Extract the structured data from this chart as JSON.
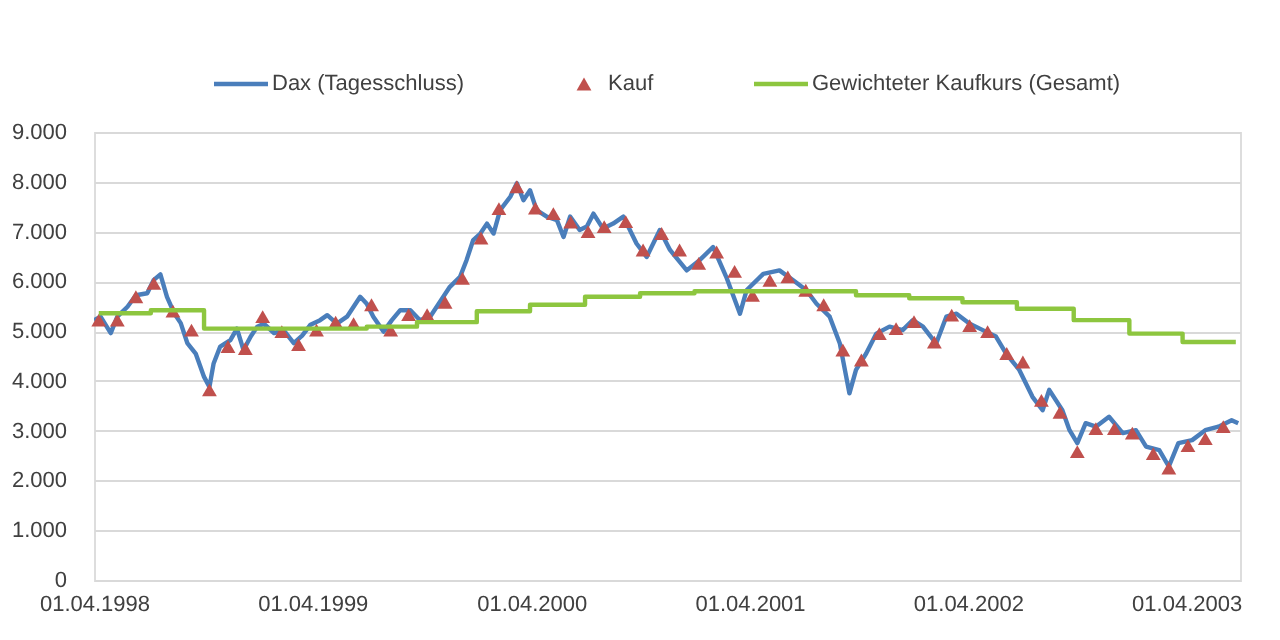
{
  "chart_data": {
    "type": "line",
    "legend": "top",
    "grid": "y",
    "xlim": [
      "1998-04-01",
      "2003-06-30"
    ],
    "xticks": [
      {
        "value": "1998-04-01",
        "label": "01.04.1998"
      },
      {
        "value": "1999-04-01",
        "label": "01.04.1999"
      },
      {
        "value": "2000-04-01",
        "label": "01.04.2000"
      },
      {
        "value": "2001-04-01",
        "label": "01.04.2001"
      },
      {
        "value": "2002-04-01",
        "label": "01.04.2002"
      },
      {
        "value": "2003-04-01",
        "label": "01.04.2003"
      }
    ],
    "ylim": [
      0,
      9000
    ],
    "yticks": [
      0,
      {
        "value": 1000,
        "label": "1.000"
      },
      {
        "value": 2000,
        "label": "2.000"
      },
      {
        "value": 3000,
        "label": "3.000"
      },
      {
        "value": 4000,
        "label": "4.000"
      },
      {
        "value": 5000,
        "label": "5.000"
      },
      {
        "value": 6000,
        "label": "6.000"
      },
      {
        "value": 7000,
        "label": "7.000"
      },
      {
        "value": 8000,
        "label": "8.000"
      },
      {
        "value": 9000,
        "label": "9.000"
      }
    ],
    "series": [
      {
        "name": "Dax (Tagesschluss)",
        "type": "line",
        "color": "#4a7ebb",
        "marker": "none",
        "line_style": "solid",
        "x": [
          "1998-04-01",
          "1998-04-12",
          "1998-04-29",
          "1998-05-10",
          "1998-05-27",
          "1998-06-10",
          "1998-06-29",
          "1998-07-10",
          "1998-07-21",
          "1998-08-01",
          "1998-08-13",
          "1998-08-24",
          "1998-09-04",
          "1998-09-18",
          "1998-10-02",
          "1998-10-11",
          "1998-10-18",
          "1998-10-29",
          "1998-11-15",
          "1998-11-26",
          "1998-12-07",
          "1998-12-19",
          "1998-12-30",
          "1999-01-10",
          "1999-01-27",
          "1999-02-12",
          "1999-03-01",
          "1999-03-15",
          "1999-03-29",
          "1999-04-14",
          "1999-04-26",
          "1999-05-12",
          "1999-05-29",
          "1999-06-09",
          "1999-06-20",
          "1999-07-01",
          "1999-07-12",
          "1999-07-29",
          "1999-08-12",
          "1999-08-26",
          "1999-09-12",
          "1999-09-28",
          "1999-10-15",
          "1999-10-26",
          "1999-11-06",
          "1999-11-17",
          "1999-12-04",
          "1999-12-15",
          "1999-12-26",
          "2000-01-07",
          "2000-01-18",
          "2000-01-29",
          "2000-02-09",
          "2000-02-26",
          "2000-03-08",
          "2000-03-19",
          "2000-03-30",
          "2000-04-10",
          "2000-04-27",
          "2000-05-14",
          "2000-05-25",
          "2000-06-05",
          "2000-06-21",
          "2000-07-03",
          "2000-07-14",
          "2000-07-30",
          "2000-08-16",
          "2000-09-02",
          "2000-09-24",
          "2000-10-11",
          "2000-11-02",
          "2000-11-19",
          "2000-12-17",
          "2001-01-08",
          "2001-01-30",
          "2001-02-21",
          "2001-03-16",
          "2001-03-27",
          "2001-04-24",
          "2001-05-21",
          "2001-06-13",
          "2001-07-05",
          "2001-07-22",
          "2001-08-13",
          "2001-08-30",
          "2001-09-15",
          "2001-09-26",
          "2001-10-13",
          "2001-10-30",
          "2001-11-21",
          "2001-12-13",
          "2001-12-30",
          "2002-01-16",
          "2002-02-07",
          "2002-02-24",
          "2002-03-13",
          "2002-04-04",
          "2002-04-26",
          "2002-05-18",
          "2002-06-04",
          "2002-06-26",
          "2002-07-18",
          "2002-08-04",
          "2002-08-15",
          "2002-09-06",
          "2002-09-18",
          "2002-10-01",
          "2002-10-15",
          "2002-11-01",
          "2002-11-23",
          "2002-12-16",
          "2003-01-07",
          "2003-01-24",
          "2003-02-15",
          "2003-03-03",
          "2003-03-19",
          "2003-04-11",
          "2003-05-03",
          "2003-05-25",
          "2003-06-16",
          "2003-06-27"
        ],
        "values": [
          5220,
          5290,
          4960,
          5290,
          5490,
          5720,
          5760,
          6030,
          6140,
          5690,
          5360,
          5160,
          4760,
          4550,
          4080,
          3880,
          4350,
          4690,
          4820,
          5050,
          4620,
          4890,
          5090,
          5150,
          4960,
          5020,
          4760,
          4910,
          5130,
          5220,
          5320,
          5150,
          5290,
          5490,
          5690,
          5550,
          5290,
          4990,
          5220,
          5420,
          5420,
          5220,
          5290,
          5490,
          5690,
          5890,
          6090,
          6430,
          6830,
          6960,
          7160,
          6960,
          7430,
          7700,
          7970,
          7630,
          7830,
          7430,
          7300,
          7230,
          6890,
          7300,
          7030,
          7100,
          7360,
          7060,
          7160,
          7300,
          6760,
          6490,
          7030,
          6630,
          6220,
          6430,
          6690,
          6090,
          5350,
          5820,
          6150,
          6220,
          6020,
          5820,
          5550,
          5290,
          4750,
          3750,
          4220,
          4550,
          4950,
          5090,
          5020,
          5220,
          5090,
          4750,
          5290,
          5350,
          5150,
          5020,
          4890,
          4550,
          4220,
          3680,
          3410,
          3820,
          3410,
          3010,
          2750,
          3150,
          3080,
          3280,
          2950,
          3010,
          2680,
          2610,
          2280,
          2750,
          2810,
          3010,
          3080,
          3210,
          3150
        ]
      },
      {
        "name": "Kauf",
        "type": "scatter",
        "color": "#c0504d",
        "marker": "triangle",
        "x": [
          "1998-04-09",
          "1998-05-10",
          "1998-06-10",
          "1998-07-10",
          "1998-08-11",
          "1998-09-11",
          "1998-10-11",
          "1998-11-11",
          "1998-12-10",
          "1999-01-08",
          "1999-02-09",
          "1999-03-09",
          "1999-04-08",
          "1999-05-10",
          "1999-06-09",
          "1999-07-09",
          "1999-08-10",
          "1999-09-09",
          "1999-10-10",
          "1999-11-09",
          "1999-12-08",
          "2000-01-08",
          "2000-02-07",
          "2000-03-08",
          "2000-04-08",
          "2000-05-08",
          "2000-06-06",
          "2000-07-05",
          "2000-08-01",
          "2000-09-06",
          "2000-10-05",
          "2000-11-05",
          "2000-12-05",
          "2001-01-06",
          "2001-02-05",
          "2001-03-07",
          "2001-04-06",
          "2001-05-05",
          "2001-06-04",
          "2001-07-04",
          "2001-08-03",
          "2001-09-04",
          "2001-10-05",
          "2001-11-04",
          "2001-12-02",
          "2002-01-01",
          "2002-02-04",
          "2002-03-05",
          "2002-04-04",
          "2002-05-04",
          "2002-06-05",
          "2002-07-02",
          "2002-08-02",
          "2002-09-02",
          "2002-10-01",
          "2002-11-01",
          "2002-12-02",
          "2003-01-01",
          "2003-02-05",
          "2003-03-03",
          "2003-04-04",
          "2003-05-03",
          "2003-06-02"
        ],
        "values": [
          5220,
          5220,
          5690,
          5960,
          5400,
          5020,
          3820,
          4690,
          4650,
          5290,
          4990,
          4730,
          5020,
          5180,
          5150,
          5530,
          5020,
          5330,
          5330,
          5580,
          6060,
          6870,
          7460,
          7900,
          7470,
          7360,
          7190,
          7000,
          7100,
          7200,
          6630,
          6960,
          6630,
          6360,
          6590,
          6200,
          5720,
          6020,
          6090,
          5820,
          5530,
          4620,
          4420,
          4950,
          5050,
          5190,
          4780,
          5320,
          5110,
          4990,
          4550,
          4380,
          3610,
          3370,
          2580,
          3040,
          3040,
          2950,
          2540,
          2250,
          2700,
          2840,
          3080
        ]
      },
      {
        "name": "Gewichteter Kaufkurs (Gesamt)",
        "type": "step",
        "color": "#8dc63f",
        "marker": "none",
        "line_style": "solid",
        "x": [
          "1998-04-09",
          "1998-07-05",
          "1998-10-02",
          "1999-07-01",
          "1999-09-23",
          "2000-01-01",
          "2000-03-30",
          "2000-06-30",
          "2000-09-30",
          "2000-12-30",
          "2001-09-26",
          "2001-12-24",
          "2002-03-23",
          "2002-06-22",
          "2002-09-25",
          "2002-12-27",
          "2003-03-26",
          "2003-06-23"
        ],
        "values": [
          5360,
          5420,
          5050,
          5090,
          5180,
          5400,
          5530,
          5690,
          5760,
          5800,
          5720,
          5660,
          5580,
          5450,
          5220,
          4950,
          4780,
          4780
        ]
      }
    ]
  }
}
